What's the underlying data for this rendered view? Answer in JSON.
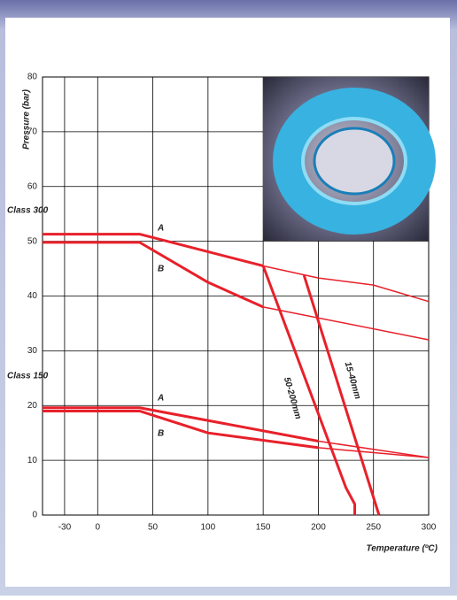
{
  "chart_data": {
    "type": "line",
    "x_label": "Temperature (ºC)",
    "y_label": "Pressure (bar)",
    "annotations": {
      "class_300": "Class 300",
      "class_150": "Class 150",
      "a_300": "A",
      "b_300": "B",
      "a_150": "A",
      "b_150": "B",
      "size_small": "15-40mm",
      "size_large": "50-200mm"
    },
    "xlim": [
      -50,
      300
    ],
    "xticks": [
      -30,
      0,
      50,
      100,
      150,
      200,
      250,
      300
    ],
    "ylim": [
      0,
      80
    ],
    "yticks": [
      0,
      10,
      20,
      30,
      40,
      50,
      60,
      70,
      80
    ],
    "grid": true,
    "series": [
      {
        "color": "#e8202a",
        "width": 3,
        "x": [
          -50,
          38,
          150
        ],
        "values": [
          51.3,
          51.3,
          45.5
        ]
      },
      {
        "color": "#e8202a",
        "width": 1.5,
        "x": [
          150,
          200,
          250,
          300
        ],
        "values": [
          45.5,
          43.3,
          42,
          39
        ]
      },
      {
        "color": "#e8202a",
        "width": 3,
        "x": [
          -50,
          38,
          100,
          150
        ],
        "values": [
          49.8,
          49.8,
          42.5,
          38
        ]
      },
      {
        "color": "#e8202a",
        "width": 1.5,
        "x": [
          150,
          300
        ],
        "values": [
          38,
          32
        ]
      },
      {
        "color": "#e8202a",
        "width": 3,
        "x": [
          -50,
          38,
          200
        ],
        "values": [
          19.6,
          19.6,
          13.5
        ]
      },
      {
        "color": "#e8202a",
        "width": 1.5,
        "x": [
          200,
          300
        ],
        "values": [
          13.5,
          10.5
        ]
      },
      {
        "color": "#e8202a",
        "width": 3,
        "x": [
          -50,
          38,
          100,
          200
        ],
        "values": [
          19,
          19,
          15,
          12.3
        ]
      },
      {
        "color": "#e8202a",
        "width": 1.5,
        "x": [
          200,
          300
        ],
        "values": [
          12.3,
          10.5
        ]
      },
      {
        "color": "#e8202a",
        "width": 3,
        "x": [
          150,
          225,
          233,
          233
        ],
        "values": [
          45.5,
          5,
          2,
          0
        ]
      },
      {
        "color": "#e8202a",
        "width": 3,
        "x": [
          187,
          255
        ],
        "values": [
          43.8,
          0
        ]
      }
    ]
  }
}
